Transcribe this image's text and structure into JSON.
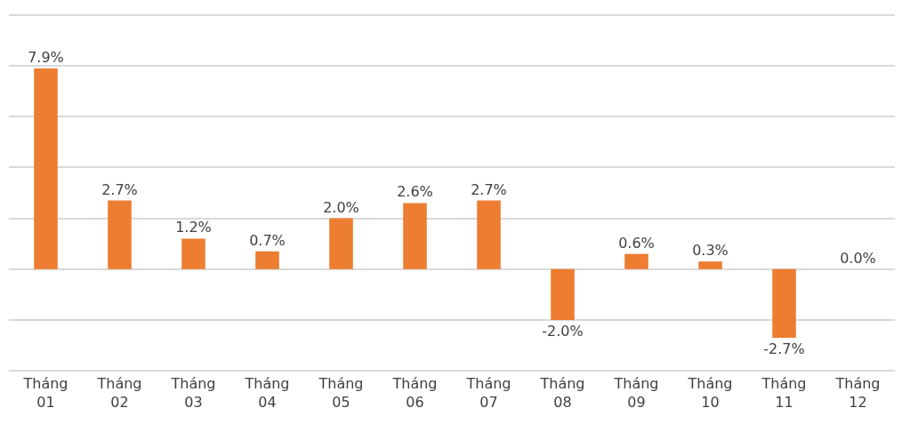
{
  "chart_data": {
    "type": "bar",
    "categories": [
      "Tháng\n01",
      "Tháng\n02",
      "Tháng\n03",
      "Tháng\n04",
      "Tháng\n05",
      "Tháng\n06",
      "Tháng\n07",
      "Tháng\n08",
      "Tháng\n09",
      "Tháng\n10",
      "Tháng\n11",
      "Tháng\n12"
    ],
    "values": [
      7.9,
      2.7,
      1.2,
      0.7,
      2.0,
      2.6,
      2.7,
      -2.0,
      0.6,
      0.3,
      -2.7,
      0.0
    ],
    "value_labels": [
      "7.9%",
      "2.7%",
      "1.2%",
      "0.7%",
      "2.0%",
      "2.6%",
      "2.7%",
      "-2.0%",
      "0.6%",
      "0.3%",
      "-2.7%",
      "0.0%"
    ],
    "color": "#ed7d31",
    "yticks": [
      {
        "value": -4,
        "label": null
      },
      {
        "value": -2,
        "label": null
      },
      {
        "value": 0,
        "label": null
      },
      {
        "value": 2,
        "label": null
      },
      {
        "value": 4,
        "label": null
      },
      {
        "value": 6,
        "label": null
      },
      {
        "value": 8,
        "label": null
      },
      {
        "value": 10,
        "label": null
      }
    ],
    "grid": "y",
    "tick_labels": "x",
    "legend": false
  }
}
